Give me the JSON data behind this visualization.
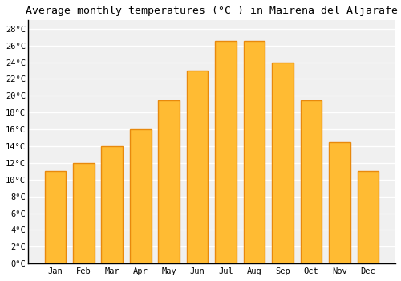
{
  "title": "Average monthly temperatures (°C ) in Mairena del Aljarafe",
  "months": [
    "Jan",
    "Feb",
    "Mar",
    "Apr",
    "May",
    "Jun",
    "Jul",
    "Aug",
    "Sep",
    "Oct",
    "Nov",
    "Dec"
  ],
  "temperatures": [
    11,
    12,
    14,
    16,
    19.5,
    23,
    26.5,
    26.5,
    24,
    19.5,
    14.5,
    11
  ],
  "bar_color": "#FFBB33",
  "bar_edge_color": "#E8890C",
  "background_color": "#FFFFFF",
  "plot_bg_color": "#F0F0F0",
  "grid_color": "#FFFFFF",
  "title_fontsize": 9.5,
  "tick_fontsize": 7.5,
  "ylim": [
    0,
    29
  ],
  "yticks": [
    0,
    2,
    4,
    6,
    8,
    10,
    12,
    14,
    16,
    18,
    20,
    22,
    24,
    26,
    28
  ]
}
